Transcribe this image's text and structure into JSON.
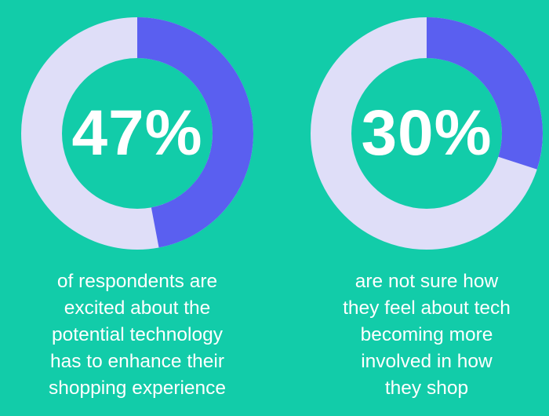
{
  "colors": {
    "background": "#12cca9",
    "track": "#dfdef8",
    "accent": "#5a5ff0",
    "text": "#ffffff"
  },
  "chart_data": [
    {
      "type": "pie",
      "variant": "donut",
      "value_percent": 47,
      "value_label": "47%",
      "caption_lines": [
        "of respondents are",
        "excited about the",
        "potential technology",
        "has to enhance their",
        "shopping experience"
      ]
    },
    {
      "type": "pie",
      "variant": "donut",
      "value_percent": 30,
      "value_label": "30%",
      "caption_lines": [
        "are not sure how",
        "they feel about tech",
        "becoming more",
        "involved in how",
        "they shop"
      ]
    }
  ]
}
